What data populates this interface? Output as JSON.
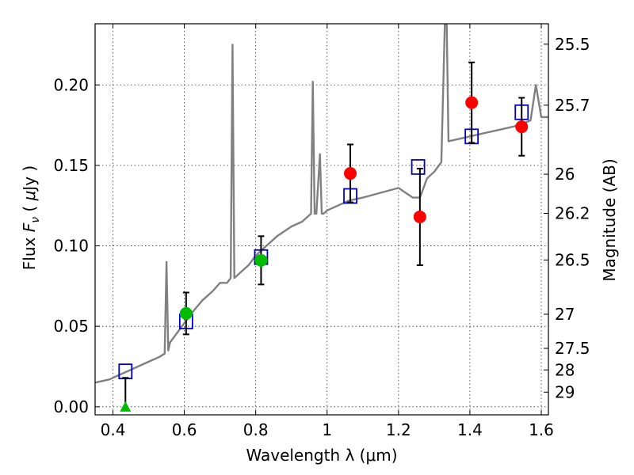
{
  "chart_data": {
    "type": "scatter",
    "xlabel": "Wavelength  λ (μm)",
    "ylabel": "Flux  F_ν  ( μJy )",
    "ylabel_parts": {
      "pre": "Flux  ",
      "var": "F",
      "sub": "ν",
      "mid": "  ( ",
      "unit_var": "μ",
      "unit": "Jy )"
    },
    "y2label": "Magnitude (AB)",
    "xlim": [
      0.35,
      1.62
    ],
    "ylim": [
      -0.005,
      0.238
    ],
    "grid": true,
    "x_ticks": [
      {
        "value": 0.4,
        "label": "0.4"
      },
      {
        "value": 0.6,
        "label": "0.6"
      },
      {
        "value": 0.8,
        "label": "0.8"
      },
      {
        "value": 1.0,
        "label": "1"
      },
      {
        "value": 1.2,
        "label": "1.2"
      },
      {
        "value": 1.4,
        "label": "1.4"
      },
      {
        "value": 1.6,
        "label": "1.6"
      }
    ],
    "y_ticks": [
      {
        "value": 0.0,
        "label": "0.00"
      },
      {
        "value": 0.05,
        "label": "0.05"
      },
      {
        "value": 0.1,
        "label": "0.10"
      },
      {
        "value": 0.15,
        "label": "0.15"
      },
      {
        "value": 0.2,
        "label": "0.20"
      }
    ],
    "y2_ticks": [
      {
        "flux": 0.2253,
        "label": "25.5"
      },
      {
        "flux": 0.1874,
        "label": "25.7"
      },
      {
        "flux": 0.1445,
        "label": "26"
      },
      {
        "flux": 0.1202,
        "label": "26.2"
      },
      {
        "flux": 0.0912,
        "label": "26.5"
      },
      {
        "flux": 0.0575,
        "label": "27"
      },
      {
        "flux": 0.0363,
        "label": "27.5"
      },
      {
        "flux": 0.0229,
        "label": "28"
      },
      {
        "flux": 0.0091,
        "label": "29"
      }
    ],
    "series": [
      {
        "kind": "line",
        "color": "#808080",
        "x": [
          0.35,
          0.37,
          0.39,
          0.41,
          0.43,
          0.45,
          0.47,
          0.49,
          0.51,
          0.53,
          0.545,
          0.55,
          0.555,
          0.56,
          0.58,
          0.6,
          0.62,
          0.65,
          0.68,
          0.7,
          0.72,
          0.73,
          0.735,
          0.74,
          0.75,
          0.78,
          0.8,
          0.83,
          0.86,
          0.9,
          0.93,
          0.955,
          0.96,
          0.965,
          0.97,
          0.98,
          0.985,
          0.99,
          1.0,
          1.03,
          1.06,
          1.1,
          1.15,
          1.2,
          1.24,
          1.26,
          1.28,
          1.3,
          1.32,
          1.33,
          1.335,
          1.34,
          1.36,
          1.4,
          1.44,
          1.48,
          1.52,
          1.55,
          1.57,
          1.585,
          1.6,
          1.62
        ],
        "y": [
          0.015,
          0.016,
          0.017,
          0.019,
          0.021,
          0.023,
          0.025,
          0.027,
          0.029,
          0.031,
          0.033,
          0.09,
          0.035,
          0.04,
          0.046,
          0.052,
          0.058,
          0.066,
          0.072,
          0.077,
          0.077,
          0.08,
          0.225,
          0.08,
          0.082,
          0.088,
          0.094,
          0.1,
          0.106,
          0.112,
          0.115,
          0.12,
          0.202,
          0.12,
          0.12,
          0.157,
          0.12,
          0.12,
          0.122,
          0.125,
          0.128,
          0.13,
          0.133,
          0.136,
          0.13,
          0.13,
          0.142,
          0.146,
          0.152,
          0.24,
          0.24,
          0.165,
          0.166,
          0.168,
          0.17,
          0.172,
          0.174,
          0.176,
          0.178,
          0.2,
          0.18,
          0.18
        ]
      },
      {
        "kind": "open-square",
        "color": "#0000cc",
        "x": [
          0.435,
          0.605,
          0.815,
          1.065,
          1.255,
          1.405,
          1.545
        ],
        "y": [
          0.022,
          0.053,
          0.093,
          0.131,
          0.149,
          0.168,
          0.183
        ]
      },
      {
        "kind": "point",
        "color": "#00bb00",
        "x": [
          0.605,
          0.815
        ],
        "y": [
          0.058,
          0.091
        ],
        "yerr": [
          0.013,
          0.015
        ]
      },
      {
        "kind": "triangle-up",
        "color": "#00bb00",
        "x": [
          0.435
        ],
        "y": [
          0.0
        ],
        "yerr_range": [
          [
            0.0,
            0.018
          ]
        ]
      },
      {
        "kind": "point",
        "color": "#ff0000",
        "x": [
          1.065,
          1.26,
          1.405,
          1.545
        ],
        "y": [
          0.145,
          0.118,
          0.189,
          0.174
        ],
        "yerr": [
          0.018,
          0.03,
          0.025,
          0.018
        ]
      }
    ]
  }
}
